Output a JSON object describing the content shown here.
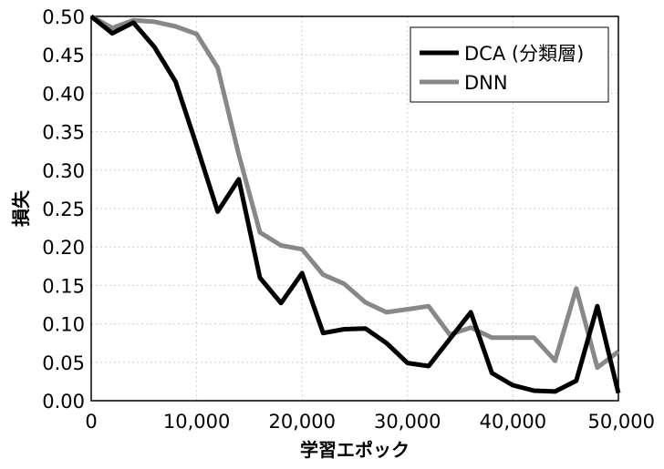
{
  "chart_data": {
    "type": "line",
    "xlabel": "学習エポック",
    "ylabel": "損失",
    "xlim": [
      0,
      50000
    ],
    "ylim": [
      0,
      0.5
    ],
    "x_ticks": [
      "0",
      "10,000",
      "20,000",
      "30,000",
      "40,000",
      "50,000"
    ],
    "y_ticks": [
      "0.00",
      "0.05",
      "0.10",
      "0.15",
      "0.20",
      "0.25",
      "0.30",
      "0.35",
      "0.40",
      "0.45",
      "0.50"
    ],
    "grid": true,
    "legend_position": "top-right",
    "series": [
      {
        "name": "DCA (分類層)",
        "color": "#000000",
        "x": [
          0,
          2000,
          4000,
          6000,
          8000,
          10000,
          12000,
          14000,
          16000,
          18000,
          20000,
          22000,
          24000,
          26000,
          28000,
          30000,
          32000,
          34000,
          36000,
          38000,
          40000,
          42000,
          44000,
          46000,
          48000,
          50000
        ],
        "y": [
          0.5,
          0.478,
          0.492,
          0.46,
          0.415,
          0.332,
          0.246,
          0.288,
          0.16,
          0.127,
          0.166,
          0.088,
          0.093,
          0.094,
          0.075,
          0.049,
          0.045,
          0.08,
          0.115,
          0.036,
          0.02,
          0.013,
          0.012,
          0.026,
          0.123,
          0.01
        ]
      },
      {
        "name": "DNN",
        "color": "#888888",
        "x": [
          0,
          2000,
          4000,
          6000,
          8000,
          10000,
          12000,
          14000,
          16000,
          18000,
          20000,
          22000,
          24000,
          26000,
          28000,
          30000,
          32000,
          34000,
          36000,
          38000,
          40000,
          42000,
          44000,
          46000,
          48000,
          50000
        ],
        "y": [
          0.5,
          0.485,
          0.495,
          0.493,
          0.487,
          0.477,
          0.433,
          0.32,
          0.219,
          0.202,
          0.197,
          0.164,
          0.152,
          0.128,
          0.115,
          0.119,
          0.123,
          0.086,
          0.095,
          0.082,
          0.082,
          0.082,
          0.052,
          0.146,
          0.043,
          0.064
        ]
      }
    ]
  }
}
